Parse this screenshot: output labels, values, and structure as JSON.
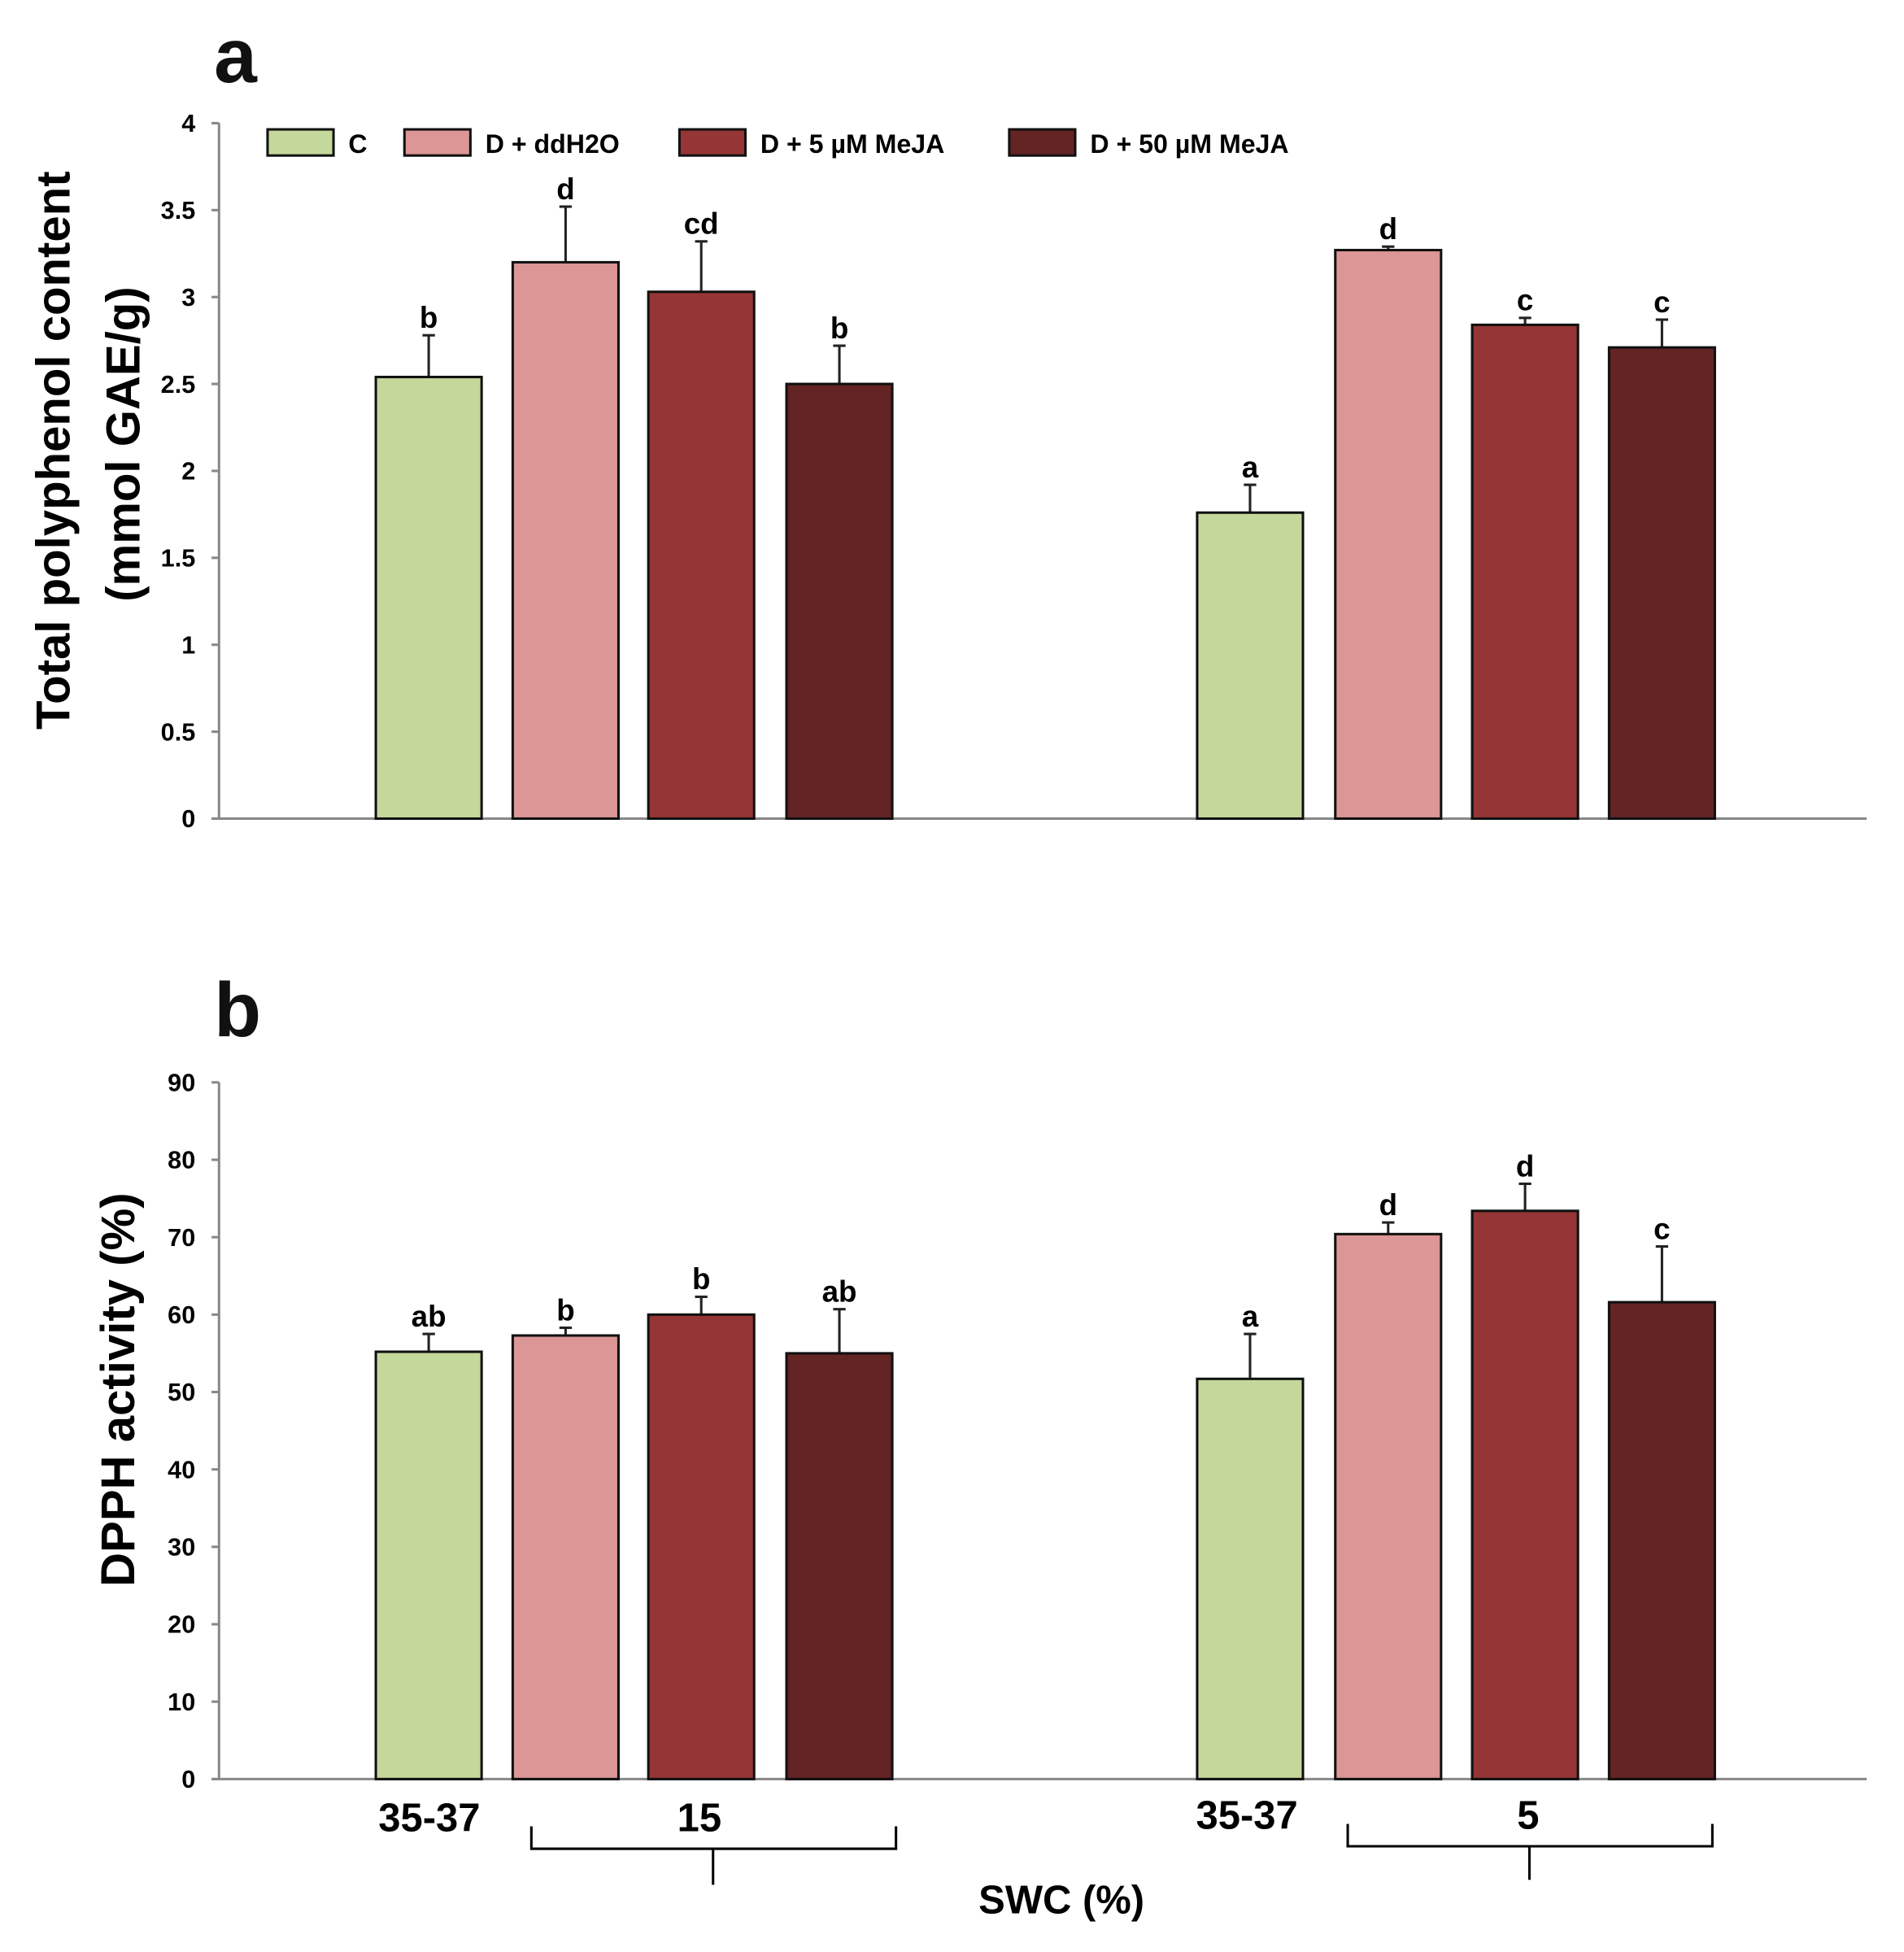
{
  "chart_data": [
    {
      "type": "bar",
      "panel_label": "a",
      "ylabel_line1": "Total polyphenol content",
      "ylabel_line2": "(mmol GAE/g)",
      "ylim": [
        0,
        4
      ],
      "yticks": [
        "0",
        "0.5",
        "1",
        "1.5",
        "2",
        "2.5",
        "3",
        "3.5",
        "4"
      ],
      "legend": [
        "C",
        "D + ddH2O",
        "D + 5 µM MeJA",
        "D + 50 µM MeJA"
      ],
      "legend_position": "top",
      "colors": [
        "#c5d89b",
        "#db9695",
        "#953535",
        "#642424"
      ],
      "groups": [
        {
          "values": [
            2.54,
            3.2,
            3.03,
            2.5
          ],
          "errors": [
            0.24,
            0.32,
            0.29,
            0.22
          ],
          "letters": [
            "b",
            "d",
            "cd",
            "b"
          ]
        },
        {
          "values": [
            1.76,
            3.27,
            2.84,
            2.71
          ],
          "errors": [
            0.16,
            0.02,
            0.04,
            0.16
          ],
          "letters": [
            "a",
            "d",
            "c",
            "c"
          ]
        }
      ]
    },
    {
      "type": "bar",
      "panel_label": "b",
      "ylabel": "DPPH activity (%)",
      "ylim": [
        0,
        90
      ],
      "yticks": [
        "0",
        "10",
        "20",
        "30",
        "40",
        "50",
        "60",
        "70",
        "80",
        "90"
      ],
      "colors": [
        "#c5d89b",
        "#db9695",
        "#953535",
        "#642424"
      ],
      "groups": [
        {
          "values": [
            55.2,
            57.3,
            60.0,
            55.0
          ],
          "errors": [
            2.3,
            1.0,
            2.3,
            5.7
          ],
          "letters": [
            "ab",
            "b",
            "b",
            "ab"
          ]
        },
        {
          "values": [
            51.7,
            70.4,
            73.4,
            61.6
          ],
          "errors": [
            5.8,
            1.5,
            3.5,
            7.2
          ],
          "letters": [
            "a",
            "d",
            "d",
            "c"
          ]
        }
      ],
      "x_category_labels": [
        "35-37",
        "15",
        "35-37",
        "5"
      ],
      "xlabel": "SWC (%)"
    }
  ]
}
